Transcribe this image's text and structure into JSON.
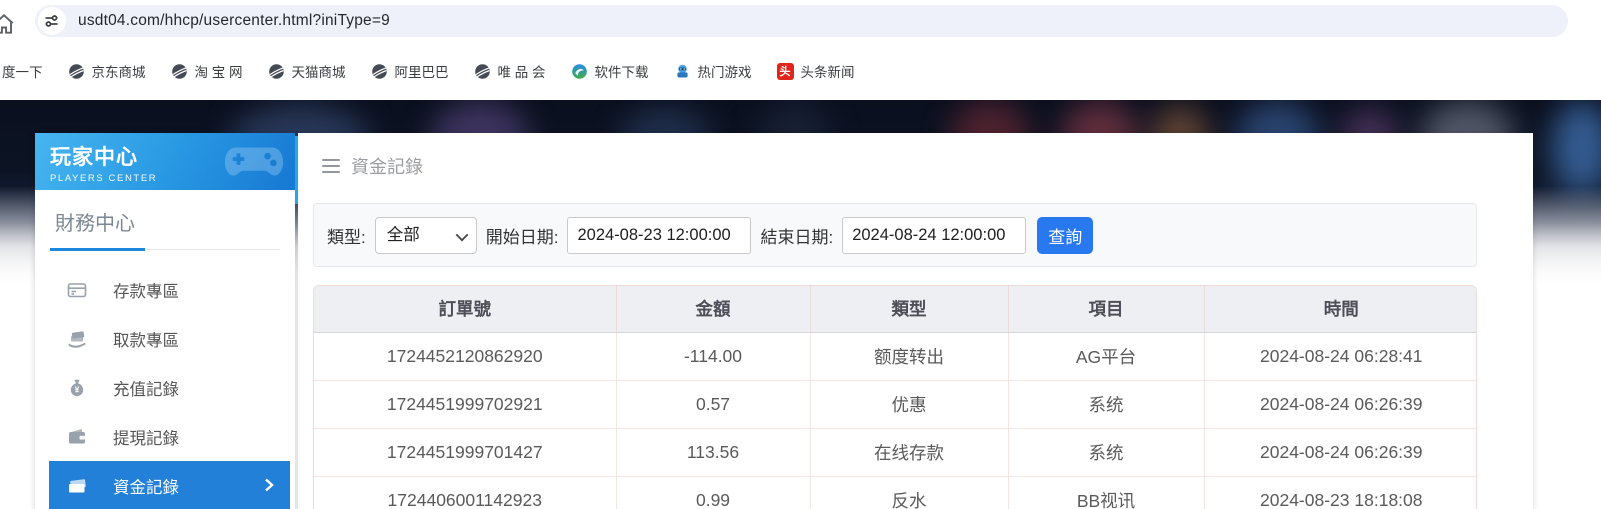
{
  "browser": {
    "url": "usdt04.com/hhcp/usercenter.html?iniType=9",
    "bookmarks": [
      {
        "label": "度一下",
        "icon": "none"
      },
      {
        "label": "京东商城",
        "icon": "globe-icon"
      },
      {
        "label": "淘 宝 网",
        "icon": "globe-icon"
      },
      {
        "label": "天猫商城",
        "icon": "globe-icon"
      },
      {
        "label": "阿里巴巴",
        "icon": "globe-icon"
      },
      {
        "label": "唯 品 会",
        "icon": "globe-icon"
      },
      {
        "label": "软件下载",
        "icon": "software-icon"
      },
      {
        "label": "热门游戏",
        "icon": "game-icon"
      },
      {
        "label": "头条新闻",
        "icon": "toutiao-icon",
        "badge_char": "头"
      }
    ]
  },
  "sidebar": {
    "title": "玩家中心",
    "subtitle": "PLAYERS CENTER",
    "section_title": "財務中心",
    "items": [
      {
        "label": "存款專區",
        "icon": "deposit-icon",
        "active": false
      },
      {
        "label": "取款專區",
        "icon": "withdraw-icon",
        "active": false
      },
      {
        "label": "充值記錄",
        "icon": "recharge-icon",
        "active": false
      },
      {
        "label": "提現記錄",
        "icon": "cashout-icon",
        "active": false
      },
      {
        "label": "資金記錄",
        "icon": "funds-icon",
        "active": true
      }
    ]
  },
  "main": {
    "title": "資金記錄",
    "filter": {
      "type_label": "類型:",
      "type_value": "全部",
      "start_label": "開始日期:",
      "start_value": "2024-08-23 12:00:00",
      "end_label": "結束日期:",
      "end_value": "2024-08-24 12:00:00",
      "search_label": "查詢"
    },
    "table": {
      "headers": [
        "訂單號",
        "金額",
        "類型",
        "項目",
        "時間"
      ],
      "rows": [
        [
          "1724452120862920",
          "-114.00",
          "额度转出",
          "AG平台",
          "2024-08-24 06:28:41"
        ],
        [
          "1724451999702921",
          "0.57",
          "优惠",
          "系统",
          "2024-08-24 06:26:39"
        ],
        [
          "1724451999701427",
          "113.56",
          "在线存款",
          "系统",
          "2024-08-24 06:26:39"
        ],
        [
          "1724406001142923",
          "0.99",
          "反水",
          "BB视讯",
          "2024-08-23 18:18:08"
        ]
      ]
    }
  },
  "colors": {
    "sidebar_active_blue": "#2380d8",
    "search_button_blue": "#2878f0",
    "header_gradient_start": "#47b5ef",
    "header_gradient_end": "#1678d2",
    "toutiao_red": "#e1251b"
  }
}
